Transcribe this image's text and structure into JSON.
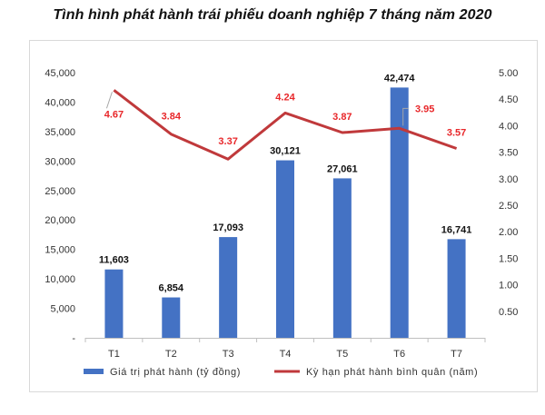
{
  "chart_data": {
    "type": "bar",
    "title": "Tình hình phát hành trái phiếu doanh nghiệp 7 tháng năm 2020",
    "categories": [
      "T1",
      "T2",
      "T3",
      "T4",
      "T5",
      "T6",
      "T7"
    ],
    "series": [
      {
        "name": "Giá trị phát hành (tỷ đồng)",
        "type": "bar",
        "axis": "left",
        "color": "#4472c4",
        "values": [
          11603,
          6854,
          17093,
          30121,
          27061,
          42474,
          16741
        ],
        "labels": [
          "11,603",
          "6,854",
          "17,093",
          "30,121",
          "27,061",
          "42,474",
          "16,741"
        ]
      },
      {
        "name": "Kỳ hạn phát hành bình quân (năm)",
        "type": "line",
        "axis": "right",
        "color": "#c0393b",
        "label_color": "#e8272a",
        "values": [
          4.67,
          3.84,
          3.37,
          4.24,
          3.87,
          3.95,
          3.57
        ],
        "labels": [
          "4.67",
          "3.84",
          "3.37",
          "4.24",
          "3.87",
          "3.95",
          "3.57"
        ]
      }
    ],
    "y_left": {
      "range": [
        0,
        45000
      ],
      "ticks": [
        0,
        5000,
        10000,
        15000,
        20000,
        25000,
        30000,
        35000,
        40000,
        45000
      ],
      "tick_labels": [
        "-",
        "5,000",
        "10,000",
        "15,000",
        "20,000",
        "25,000",
        "30,000",
        "35,000",
        "40,000",
        "45,000"
      ]
    },
    "y_right": {
      "range": [
        0,
        5
      ],
      "ticks": [
        0.5,
        1,
        1.5,
        2,
        2.5,
        3,
        3.5,
        4,
        4.5,
        5
      ],
      "tick_labels": [
        "0.50",
        "1.00",
        "1.50",
        "2.00",
        "2.50",
        "3.00",
        "3.50",
        "4.00",
        "4.50",
        "5.00"
      ]
    },
    "grid": false,
    "legend_position": "bottom"
  }
}
